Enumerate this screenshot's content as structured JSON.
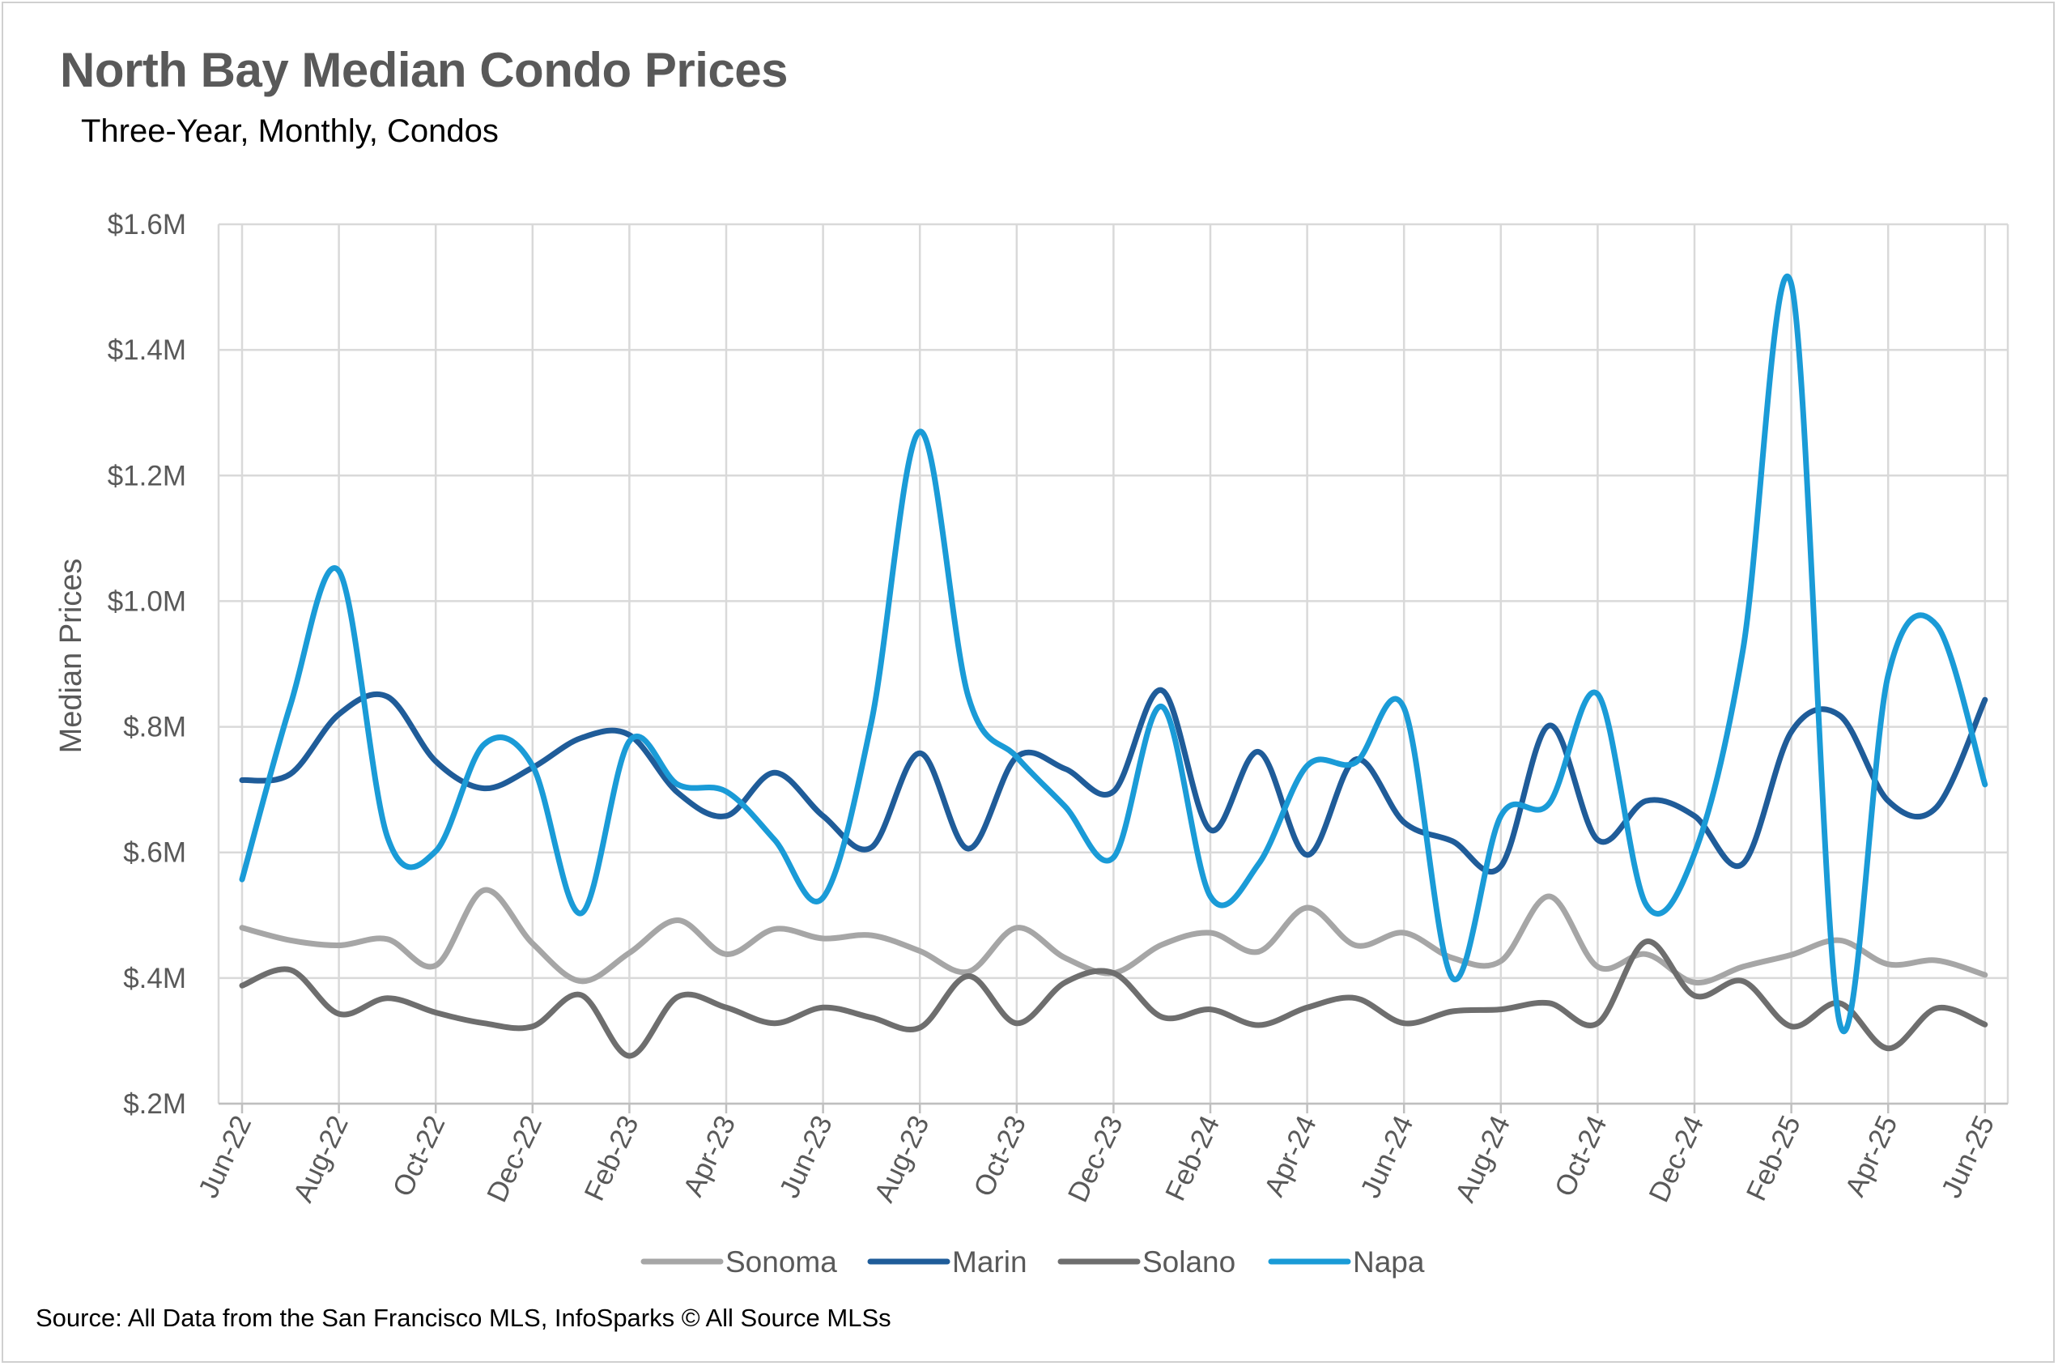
{
  "chart_data": {
    "type": "line",
    "title": "North Bay Median Condo Prices",
    "subtitle": "Three-Year, Monthly, Condos",
    "ylabel": "Median Prices",
    "xlabel": "",
    "ylim": [
      200000,
      1600000
    ],
    "y_ticks": [
      {
        "value": 1600000,
        "label": "$1.6M"
      },
      {
        "value": 1400000,
        "label": "$1.4M"
      },
      {
        "value": 1200000,
        "label": "$1.2M"
      },
      {
        "value": 1000000,
        "label": "$1.0M"
      },
      {
        "value": 800000,
        "label": "$.8M"
      },
      {
        "value": 600000,
        "label": "$.6M"
      },
      {
        "value": 400000,
        "label": "$.4M"
      },
      {
        "value": 200000,
        "label": "$.2M"
      }
    ],
    "grid": true,
    "legend_position": "bottom",
    "x": [
      "Jun-22",
      "Jul-22",
      "Aug-22",
      "Sep-22",
      "Oct-22",
      "Nov-22",
      "Dec-22",
      "Jan-23",
      "Feb-23",
      "Mar-23",
      "Apr-23",
      "May-23",
      "Jun-23",
      "Jul-23",
      "Aug-23",
      "Sep-23",
      "Oct-23",
      "Nov-23",
      "Dec-23",
      "Jan-24",
      "Feb-24",
      "Mar-24",
      "Apr-24",
      "May-24",
      "Jun-24",
      "Jul-24",
      "Aug-24",
      "Sep-24",
      "Oct-24",
      "Nov-24",
      "Dec-24",
      "Jan-25",
      "Feb-25",
      "Mar-25",
      "Apr-25",
      "May-25",
      "Jun-25"
    ],
    "x_tick_labels": [
      "Jun-22",
      "Aug-22",
      "Oct-22",
      "Dec-22",
      "Feb-23",
      "Apr-23",
      "Jun-23",
      "Aug-23",
      "Oct-23",
      "Dec-23",
      "Feb-24",
      "Apr-24",
      "Jun-24",
      "Aug-24",
      "Oct-24",
      "Dec-24",
      "Feb-25",
      "Apr-25",
      "Jun-25"
    ],
    "series": [
      {
        "name": "Sonoma",
        "color": "#A6A6A6",
        "values": [
          480000,
          460000,
          452000,
          462000,
          420000,
          540000,
          455000,
          395000,
          440000,
          492000,
          438000,
          478000,
          463000,
          468000,
          443000,
          410000,
          480000,
          432000,
          408000,
          453000,
          472000,
          442000,
          512000,
          452000,
          472000,
          432000,
          427000,
          530000,
          418000,
          438000,
          393000,
          418000,
          437000,
          460000,
          422000,
          428000,
          405000
        ]
      },
      {
        "name": "Marin",
        "color": "#1F5C99",
        "values": [
          715000,
          725000,
          820000,
          848000,
          745000,
          702000,
          735000,
          782000,
          787000,
          695000,
          658000,
          727000,
          658000,
          608000,
          758000,
          606000,
          752000,
          733000,
          697000,
          858000,
          636000,
          760000,
          596000,
          748000,
          648000,
          618000,
          578000,
          802000,
          620000,
          682000,
          658000,
          582000,
          792000,
          818000,
          682000,
          672000,
          843000
        ]
      },
      {
        "name": "Solano",
        "color": "#6E6E6E",
        "values": [
          388000,
          413000,
          343000,
          368000,
          345000,
          328000,
          323000,
          373000,
          276000,
          370000,
          353000,
          328000,
          353000,
          337000,
          321000,
          403000,
          328000,
          393000,
          408000,
          338000,
          350000,
          325000,
          353000,
          368000,
          328000,
          347000,
          350000,
          360000,
          328000,
          458000,
          372000,
          395000,
          323000,
          360000,
          288000,
          352000,
          326000
        ]
      },
      {
        "name": "Napa",
        "color": "#1A9BD7",
        "values": [
          557000,
          835000,
          1048000,
          625000,
          602000,
          772000,
          738000,
          503000,
          777000,
          708000,
          697000,
          620000,
          528000,
          808000,
          1270000,
          848000,
          752000,
          673000,
          592000,
          832000,
          530000,
          582000,
          738000,
          743000,
          830000,
          400000,
          658000,
          678000,
          852000,
          517000,
          598000,
          922000,
          1505000,
          328000,
          882000,
          962000,
          708000
        ]
      }
    ]
  },
  "source_note": "Source: All Data from the San Francisco MLS, InfoSparks © All Source MLSs"
}
